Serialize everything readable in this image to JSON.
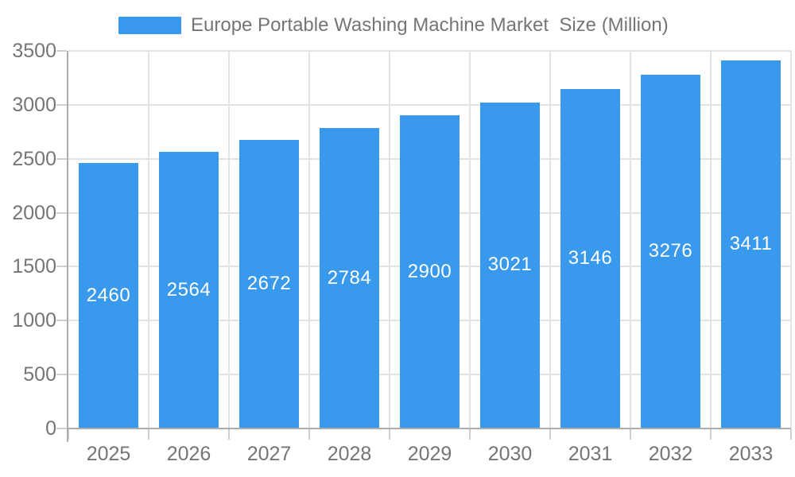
{
  "chart_data": {
    "type": "bar",
    "title": "Europe Portable Washing Machine Market  Size (Million)",
    "legend": {
      "label": "Europe Portable Washing Machine Market  Size (Million)",
      "position": "top"
    },
    "categories": [
      "2025",
      "2026",
      "2027",
      "2028",
      "2029",
      "2030",
      "2031",
      "2032",
      "2033"
    ],
    "values": [
      2460,
      2564,
      2672,
      2784,
      2900,
      3021,
      3146,
      3276,
      3411
    ],
    "xlabel": "",
    "ylabel": "",
    "ylim": [
      0,
      3500
    ],
    "ytick_step": 500,
    "ytick_labels": [
      "0",
      "500",
      "1000",
      "1500",
      "2000",
      "2500",
      "3000",
      "3500"
    ],
    "grid": true,
    "bar_value_labels_inside": true,
    "colors": {
      "bar": "#3999EC",
      "bar_label": "#FFFFFF",
      "grid_line": "#E3E3E3",
      "axis_line": "#ADADAD",
      "tick_line": "#CFCFCF",
      "text": "#757575",
      "background": "#FFFFFF"
    }
  }
}
